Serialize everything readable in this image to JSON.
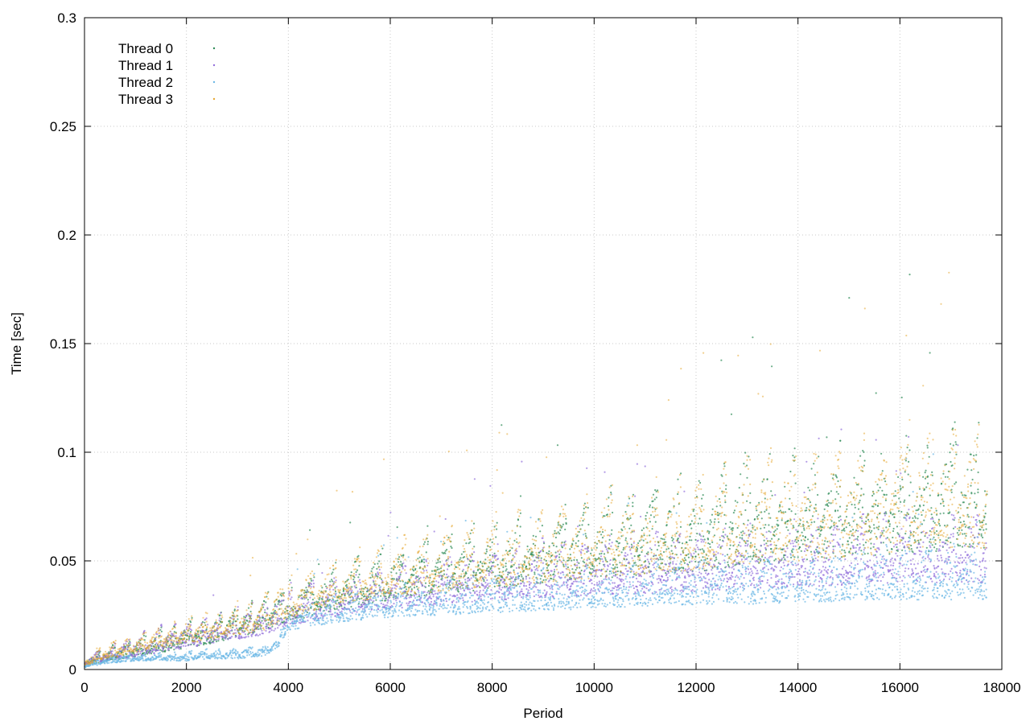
{
  "chart_data": {
    "type": "scatter",
    "title": "",
    "xlabel": "Period",
    "ylabel": "Time [sec]",
    "xlim": [
      0,
      18000
    ],
    "ylim": [
      0,
      0.3
    ],
    "x_ticks": [
      "0",
      "2000",
      "4000",
      "6000",
      "8000",
      "10000",
      "12000",
      "14000",
      "16000",
      "18000"
    ],
    "y_ticks": [
      "0",
      "0.05",
      "0.1",
      "0.15",
      "0.2",
      "0.25",
      "0.3"
    ],
    "x_tick_values": [
      0,
      2000,
      4000,
      6000,
      8000,
      10000,
      12000,
      14000,
      16000,
      18000
    ],
    "y_tick_values": [
      0,
      0.05,
      0.1,
      0.15,
      0.2,
      0.25,
      0.3
    ],
    "grid": true,
    "legend_position": "top-left",
    "series": [
      {
        "name": "Thread 0",
        "color": "#2e8b57",
        "x": [
          0,
          500,
          1000,
          1500,
          2000,
          2500,
          3000,
          3500,
          4000,
          5000,
          6000,
          7000,
          8000,
          9000,
          10000,
          11000,
          12000,
          13000,
          14000,
          15000,
          16000,
          17000,
          17700
        ],
        "min": [
          0.002,
          0.004,
          0.006,
          0.008,
          0.01,
          0.012,
          0.015,
          0.018,
          0.022,
          0.028,
          0.032,
          0.035,
          0.037,
          0.04,
          0.042,
          0.043,
          0.045,
          0.048,
          0.05,
          0.052,
          0.053,
          0.055,
          0.056
        ],
        "max": [
          0.007,
          0.012,
          0.016,
          0.02,
          0.024,
          0.027,
          0.031,
          0.036,
          0.042,
          0.052,
          0.06,
          0.065,
          0.07,
          0.078,
          0.085,
          0.092,
          0.095,
          0.11,
          0.105,
          0.108,
          0.115,
          0.12,
          0.115
        ]
      },
      {
        "name": "Thread 1",
        "color": "#9370db",
        "x": [
          0,
          500,
          1000,
          1500,
          2000,
          2500,
          3000,
          3500,
          4000,
          5000,
          6000,
          7000,
          8000,
          9000,
          10000,
          11000,
          12000,
          13000,
          14000,
          15000,
          16000,
          17000,
          17700
        ],
        "min": [
          0.002,
          0.004,
          0.006,
          0.008,
          0.01,
          0.012,
          0.014,
          0.016,
          0.02,
          0.025,
          0.028,
          0.03,
          0.032,
          0.033,
          0.034,
          0.035,
          0.036,
          0.037,
          0.038,
          0.039,
          0.04,
          0.04,
          0.04
        ],
        "max": [
          0.007,
          0.012,
          0.018,
          0.021,
          0.024,
          0.027,
          0.03,
          0.034,
          0.04,
          0.046,
          0.05,
          0.055,
          0.058,
          0.062,
          0.064,
          0.066,
          0.068,
          0.07,
          0.072,
          0.074,
          0.076,
          0.078,
          0.078
        ]
      },
      {
        "name": "Thread 2",
        "color": "#6cb8e6",
        "x": [
          0,
          500,
          1000,
          1500,
          2000,
          2500,
          3000,
          3500,
          3800,
          4000,
          5000,
          6000,
          7000,
          8000,
          9000,
          10000,
          11000,
          12000,
          13000,
          14000,
          15000,
          16000,
          17000,
          17700
        ],
        "min": [
          0.001,
          0.003,
          0.004,
          0.004,
          0.004,
          0.005,
          0.005,
          0.006,
          0.01,
          0.018,
          0.022,
          0.024,
          0.025,
          0.026,
          0.027,
          0.028,
          0.029,
          0.03,
          0.03,
          0.031,
          0.031,
          0.032,
          0.032,
          0.032
        ],
        "max": [
          0.004,
          0.007,
          0.008,
          0.008,
          0.009,
          0.01,
          0.011,
          0.012,
          0.016,
          0.03,
          0.036,
          0.04,
          0.043,
          0.046,
          0.048,
          0.05,
          0.052,
          0.054,
          0.056,
          0.058,
          0.06,
          0.062,
          0.063,
          0.064
        ]
      },
      {
        "name": "Thread 3",
        "color": "#e6a832",
        "x": [
          0,
          500,
          1000,
          1500,
          2000,
          2500,
          3000,
          3500,
          4000,
          5000,
          6000,
          7000,
          8000,
          9000,
          10000,
          11000,
          12000,
          13000,
          14000,
          15000,
          16000,
          17000,
          17700
        ],
        "min": [
          0.002,
          0.005,
          0.008,
          0.01,
          0.012,
          0.014,
          0.016,
          0.018,
          0.024,
          0.03,
          0.034,
          0.036,
          0.038,
          0.04,
          0.042,
          0.044,
          0.046,
          0.048,
          0.05,
          0.052,
          0.054,
          0.055,
          0.056
        ],
        "max": [
          0.008,
          0.014,
          0.018,
          0.022,
          0.025,
          0.028,
          0.032,
          0.038,
          0.044,
          0.054,
          0.062,
          0.068,
          0.075,
          0.08,
          0.088,
          0.092,
          0.096,
          0.104,
          0.11,
          0.112,
          0.125,
          0.12,
          0.118
        ]
      }
    ]
  }
}
